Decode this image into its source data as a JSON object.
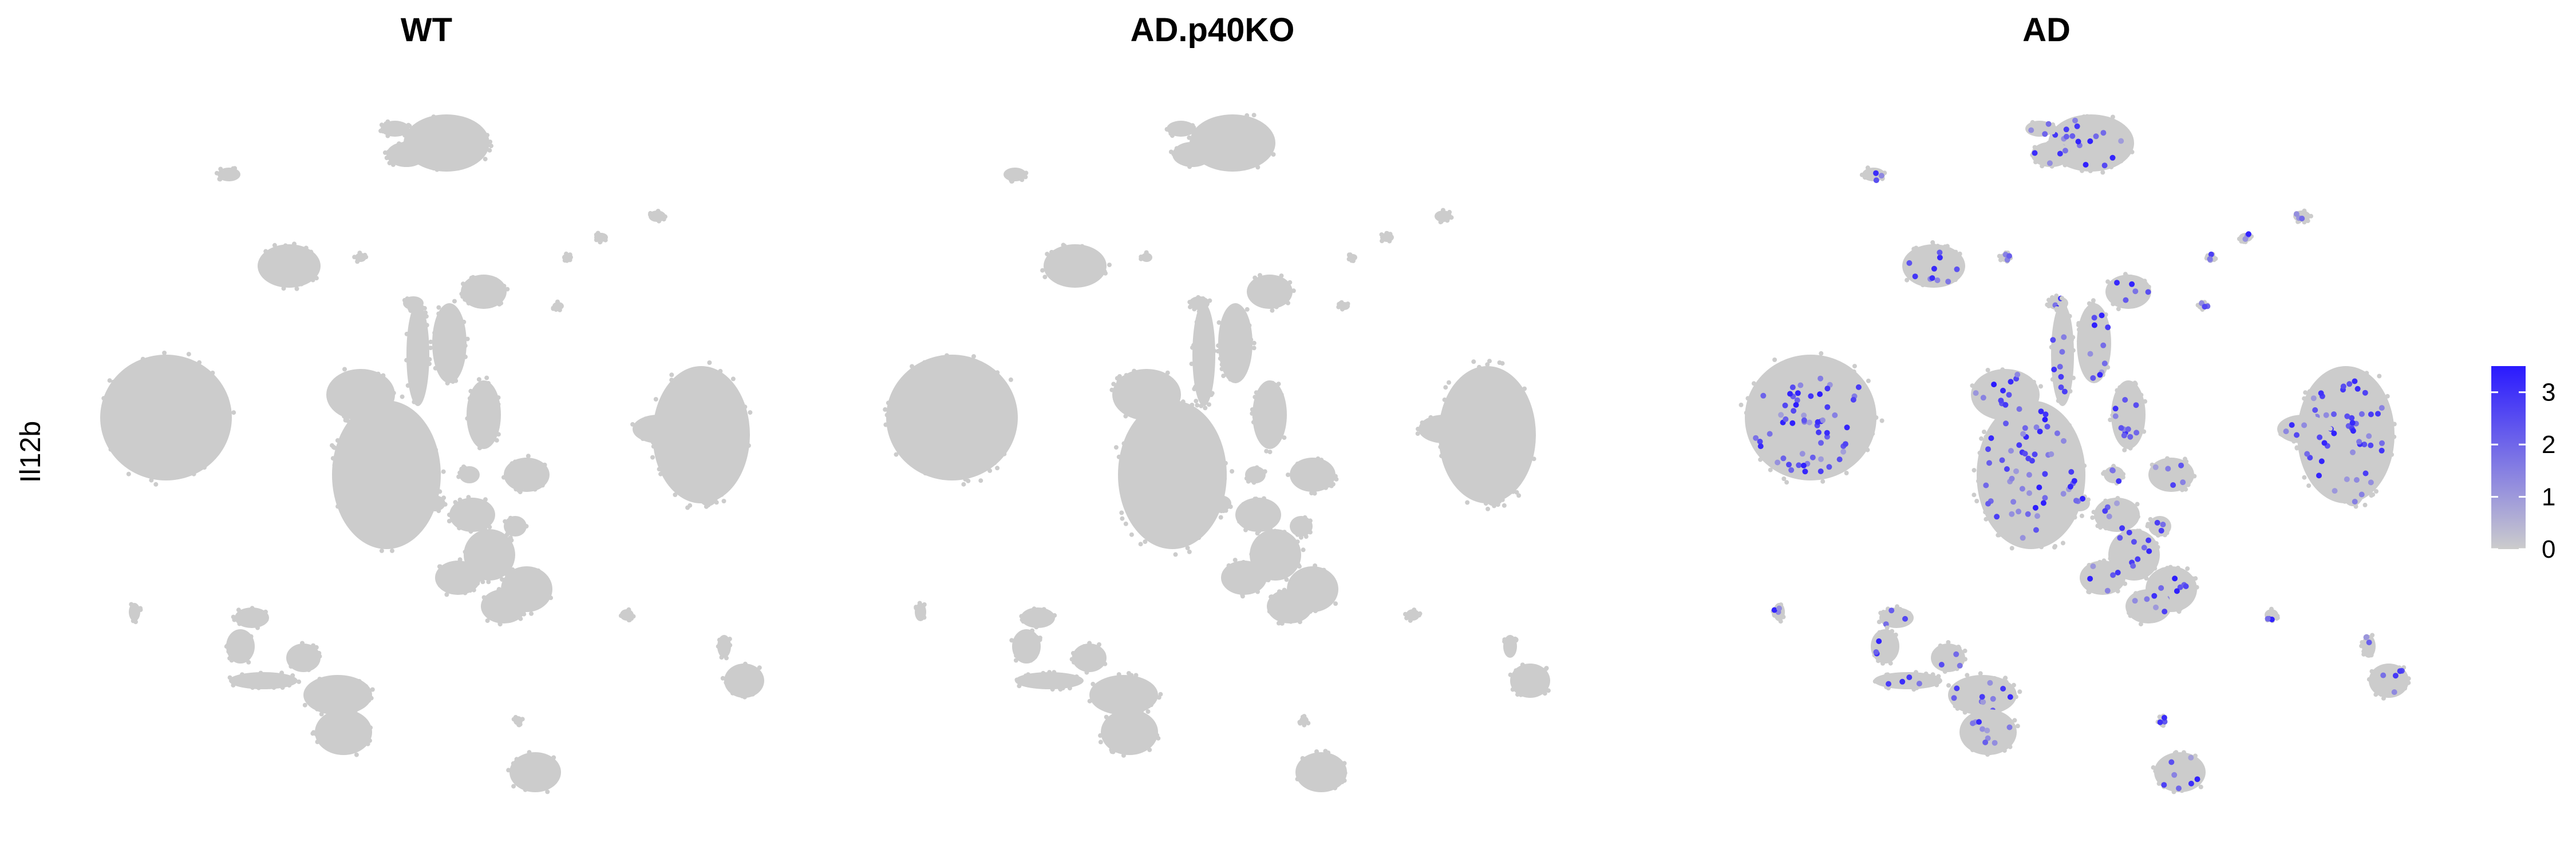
{
  "chart_data": {
    "type": "scatter",
    "subtype": "umap-feature-plot",
    "feature": "Il12b",
    "panels": [
      {
        "title": "WT",
        "expression": "none"
      },
      {
        "title": "AD.p40KO",
        "expression": "none"
      },
      {
        "title": "AD",
        "expression": "scattered"
      }
    ],
    "color_scale": {
      "low": "#cccccc",
      "high": "#2a1aff",
      "min": 0,
      "max": 3.5,
      "ticks": [
        "0",
        "1",
        "2",
        "3"
      ]
    },
    "grid": false,
    "legend_position": "right"
  }
}
